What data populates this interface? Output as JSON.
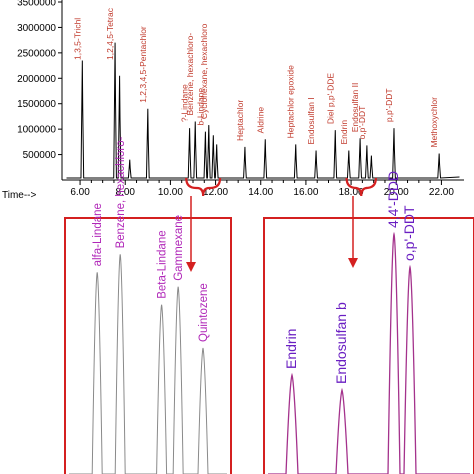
{
  "colors": {
    "trace": "#000000",
    "highlight": "#d42020",
    "zoom_left_trace": "#8a8a8a",
    "zoom_right_trace": "#a4328c",
    "zoom_left_label": "#b026b8",
    "zoom_right_label": "#6a1fc2"
  },
  "chart_data": [
    {
      "type": "line",
      "title": "",
      "xlabel": "Time-->",
      "ylabel": "",
      "xlim": [
        5.2,
        23.0
      ],
      "ylim": [
        0,
        3500000
      ],
      "x_ticks": [
        "6.00",
        "8.00",
        "10.00",
        "12.00",
        "14.00",
        "16.00",
        "18.00",
        "20.00",
        "22.00"
      ],
      "y_ticks": [
        "500000",
        "1000000",
        "1500000",
        "2000000",
        "2500000",
        "3000000",
        "3500000"
      ],
      "grid": false,
      "peaks": [
        {
          "label": "1,3,5-Trichl",
          "x": 6.1,
          "y": 2350000
        },
        {
          "label": "1,2,4,5-Tetrac",
          "x": 7.55,
          "y": 2700000
        },
        {
          "label": "",
          "x": 7.75,
          "y": 2050000
        },
        {
          "label": "",
          "x": 8.2,
          "y": 400000
        },
        {
          "label": "1,2,3,4,5-Pentachlor",
          "x": 9.0,
          "y": 1400000
        },
        {
          "label": "?-Lindane",
          "x": 10.85,
          "y": 1020000
        },
        {
          "label": "Benzene, hexachloro-",
          "x": 11.1,
          "y": 1150000
        },
        {
          "label": "b-Lindane",
          "x": 11.55,
          "y": 950000
        },
        {
          "label": "Cyclohexane, hexachloro",
          "x": 11.7,
          "y": 1080000
        },
        {
          "label": "",
          "x": 11.9,
          "y": 880000
        },
        {
          "label": "",
          "x": 12.05,
          "y": 700000
        },
        {
          "label": "Heptachlor",
          "x": 13.3,
          "y": 650000
        },
        {
          "label": "Aldrine",
          "x": 14.2,
          "y": 800000
        },
        {
          "label": "Heptachlor epoxide",
          "x": 15.55,
          "y": 700000
        },
        {
          "label": "Endosulfan I",
          "x": 16.45,
          "y": 580000
        },
        {
          "label": "Diel p,p'-DDE",
          "x": 17.3,
          "y": 980000
        },
        {
          "label": "Endrin",
          "x": 17.9,
          "y": 580000
        },
        {
          "label": "Endosulfan II",
          "x": 18.4,
          "y": 820000
        },
        {
          "label": "o,p'-DDT",
          "x": 18.7,
          "y": 680000
        },
        {
          "label": "",
          "x": 18.9,
          "y": 480000
        },
        {
          "label": "p,p'-DDT",
          "x": 19.9,
          "y": 1020000
        },
        {
          "label": "Methoxychlor",
          "x": 21.9,
          "y": 520000
        }
      ]
    },
    {
      "type": "line",
      "title": "",
      "xlabel": "",
      "ylabel": "",
      "grid": false,
      "peaks": [
        {
          "label": "alfa-Lindane",
          "x": 0.35,
          "y": 0.56
        },
        {
          "label": "Benzene, hexachloro-",
          "x": 0.6,
          "y": 0.61
        },
        {
          "label": "Beta-Lindane",
          "x": 1.05,
          "y": 0.47
        },
        {
          "label": "Gammexane",
          "x": 1.23,
          "y": 0.52
        },
        {
          "label": "Quintozene",
          "x": 1.5,
          "y": 0.35
        }
      ]
    },
    {
      "type": "line",
      "title": "",
      "xlabel": "",
      "ylabel": "",
      "grid": false,
      "peaks": [
        {
          "label": "Endrin",
          "x": 0.28,
          "y": 0.33
        },
        {
          "label": "Endosulfan b",
          "x": 0.78,
          "y": 0.28
        },
        {
          "label": "4,4'-DDD",
          "x": 1.3,
          "y": 0.8
        },
        {
          "label": "o,p'-DDT",
          "x": 1.46,
          "y": 0.69
        }
      ]
    }
  ]
}
